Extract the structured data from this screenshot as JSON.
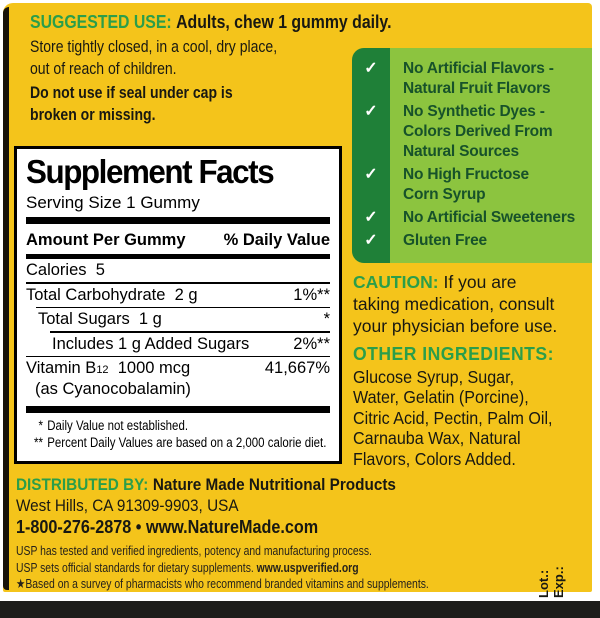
{
  "colors": {
    "label_yellow": "#F4C41B",
    "heading_green": "#2B9E4A",
    "claims_light_green": "#8CC43F",
    "claims_dark_green": "#1F8038",
    "claims_text_green": "#17522A",
    "bottom_band": "#1D1D1B"
  },
  "check_glyph": "✓",
  "suggested_use": {
    "heading": "SUGGESTED USE:",
    "instruction": "Adults, chew 1 gummy daily.",
    "storage_line1": "Store tightly closed, in a cool, dry place,",
    "storage_line2": "out of reach of children.",
    "seal_line1": "Do not use if seal under cap is",
    "seal_line2": "broken or missing."
  },
  "claims": [
    {
      "line1": "No Artificial Flavors -",
      "line2": "Natural Fruit Flavors"
    },
    {
      "line1": "No Synthetic Dyes -",
      "line2": "Colors Derived From",
      "line3": "Natural Sources"
    },
    {
      "line1": "No High Fructose",
      "line2": "Corn Syrup"
    },
    {
      "line1": "No Artificial Sweeteners"
    },
    {
      "line1": "Gluten Free"
    }
  ],
  "supplement_facts": {
    "title": "Supplement Facts",
    "serving_size": "Serving Size 1 Gummy",
    "col_amount": "Amount Per Gummy",
    "col_dv": "% Daily Value",
    "calories": "Calories  5",
    "rows": [
      {
        "name": "Total Carbohydrate  2 g",
        "value": "1%**"
      },
      {
        "name": "Total Sugars  1 g",
        "value": "*"
      },
      {
        "name": "Includes 1 g Added Sugars",
        "value": "2%**"
      }
    ],
    "vitamin": {
      "name_pre": "Vitamin B",
      "name_sub": "12",
      "name_post": "  1000 mcg",
      "name_line2": "(as Cyanocobalamin)",
      "value": "41,667%"
    },
    "footnote1_mark": "*",
    "footnote1": "Daily Value not established.",
    "footnote2_mark": "**",
    "footnote2": "Percent Daily Values are based on a 2,000 calorie diet."
  },
  "caution": {
    "heading": "CAUTION:",
    "line1": "If you are",
    "line2": "taking medication, consult",
    "line3": "your physician before use."
  },
  "other_ingredients": {
    "heading": "OTHER INGREDIENTS:",
    "line1": "Glucose Syrup, Sugar,",
    "line2": "Water, Gelatin (Porcine),",
    "line3": "Citric Acid, Pectin, Palm Oil,",
    "line4": "Carnauba Wax, Natural",
    "line5": "Flavors, Colors Added."
  },
  "distributor": {
    "heading": "DISTRIBUTED BY:",
    "name": "Nature Made Nutritional Products",
    "address": "West Hills, CA 91309-9903, USA",
    "phone_web": "1-800-276-2878 • www.NatureMade.com"
  },
  "usp": {
    "line1": "USP has tested and verified ingredients, potency and manufacturing process.",
    "line2_pre": "USP sets official standards for dietary supplements. ",
    "line2_bold": "www.uspverified.org",
    "line3": "★Based on a survey of pharmacists who recommend branded vitamins and supplements."
  },
  "lot_exp": {
    "lot": "Lot.:",
    "exp": "Exp.:"
  }
}
